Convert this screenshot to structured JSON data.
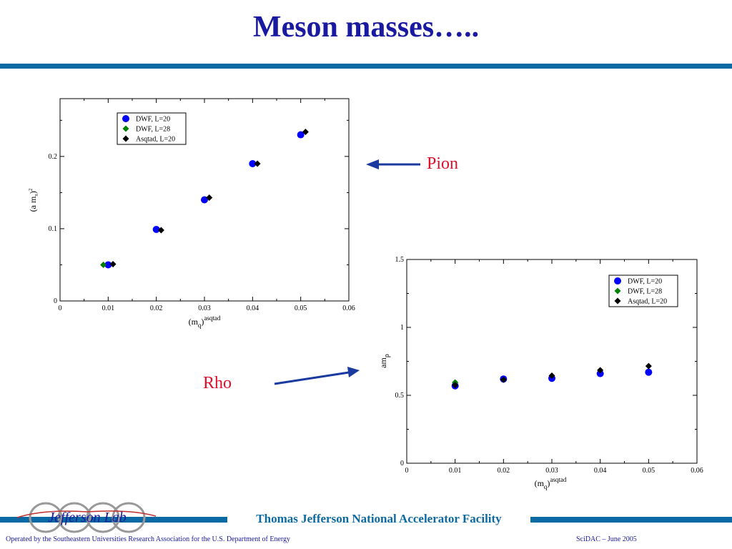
{
  "slide": {
    "title": "Meson masses…..",
    "pion_label": "Pion",
    "rho_label": "Rho"
  },
  "footer": {
    "org": "Thomas Jefferson National Accelerator Facility",
    "logo_text": "Jefferson Lab",
    "operated_by": "Operated by the Southeastern Universities Research Association for the U.S. Department of  Energy",
    "event": "SciDAC – June  2005"
  },
  "colors": {
    "title": "#1a1aa0",
    "rule": "#0b69a3",
    "callout": "#e0102a",
    "arrow": "#1a3aa0",
    "dwf20": "#0000ff",
    "dwf28": "#008000",
    "asqtad": "#000000"
  },
  "chart_data": [
    {
      "type": "scatter",
      "title": "",
      "xlabel": "(m_q)^asqtad",
      "ylabel": "(a m_π)^2",
      "xlim": [
        0,
        0.06
      ],
      "ylim": [
        0,
        0.28
      ],
      "xticks": [
        "0",
        "0.01",
        "0.02",
        "0.03",
        "0.04",
        "0.05",
        "0.06"
      ],
      "yticks": [
        "0",
        "0.1",
        "0.2"
      ],
      "legend_position": "top-center",
      "series": [
        {
          "name": "DWF, L=20",
          "marker": "circle",
          "color": "#0000ff",
          "points": [
            [
              0.01,
              0.05
            ],
            [
              0.02,
              0.099
            ],
            [
              0.03,
              0.14
            ],
            [
              0.04,
              0.19
            ],
            [
              0.05,
              0.23
            ]
          ]
        },
        {
          "name": "DWF, L=28",
          "marker": "diamond",
          "color": "#008000",
          "points": [
            [
              0.009,
              0.05
            ]
          ]
        },
        {
          "name": "Asqtad, L=20",
          "marker": "diamond",
          "color": "#000000",
          "points": [
            [
              0.011,
              0.051
            ],
            [
              0.021,
              0.098
            ],
            [
              0.031,
              0.143
            ],
            [
              0.041,
              0.19
            ],
            [
              0.051,
              0.234
            ]
          ]
        }
      ]
    },
    {
      "type": "scatter",
      "title": "",
      "xlabel": "(m_q)^asqtad",
      "ylabel": "am_ρ",
      "xlim": [
        0,
        0.06
      ],
      "ylim": [
        0,
        1.5
      ],
      "xticks": [
        "0",
        "0.01",
        "0.02",
        "0.03",
        "0.04",
        "0.05",
        "0.06"
      ],
      "yticks": [
        "0",
        "0.5",
        "1",
        "1.5"
      ],
      "legend_position": "top-right",
      "series": [
        {
          "name": "DWF, L=20",
          "marker": "circle",
          "color": "#0000ff",
          "points": [
            [
              0.01,
              0.57
            ],
            [
              0.02,
              0.62
            ],
            [
              0.03,
              0.625
            ],
            [
              0.04,
              0.66
            ],
            [
              0.05,
              0.67
            ]
          ]
        },
        {
          "name": "DWF, L=28",
          "marker": "diamond",
          "color": "#008000",
          "points": [
            [
              0.01,
              0.595
            ]
          ]
        },
        {
          "name": "Asqtad, L=20",
          "marker": "diamond",
          "color": "#000000",
          "points": [
            [
              0.01,
              0.575
            ],
            [
              0.02,
              0.615
            ],
            [
              0.03,
              0.645
            ],
            [
              0.04,
              0.685
            ],
            [
              0.05,
              0.715
            ]
          ]
        }
      ]
    }
  ]
}
